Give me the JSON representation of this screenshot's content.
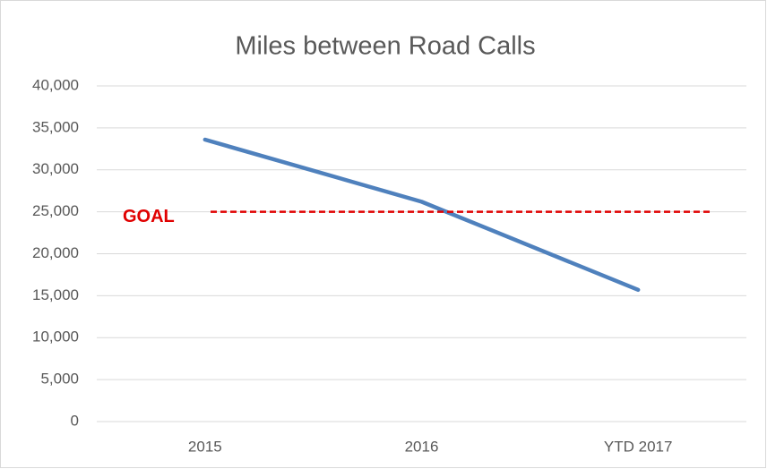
{
  "chart_data": {
    "type": "line",
    "title": "Miles between Road Calls",
    "categories": [
      "2015",
      "2016",
      "YTD 2017"
    ],
    "values": [
      33600,
      26200,
      15700
    ],
    "color": "#4f81bd",
    "ylim": [
      0,
      40000
    ],
    "yticks": [
      0,
      {
        "value": 5000,
        "label": "5,000"
      },
      {
        "value": 10000,
        "label": "10,000"
      },
      {
        "value": 15000,
        "label": "15,000"
      },
      {
        "value": 20000,
        "label": "20,000"
      },
      {
        "value": 25000,
        "label": "25,000"
      },
      {
        "value": 30000,
        "label": "30,000"
      },
      {
        "value": 35000,
        "label": "35,000"
      },
      {
        "value": 40000,
        "label": "40,000"
      }
    ],
    "grid": true,
    "goal": {
      "label": "GOAL",
      "value": 25000,
      "color": "#e00000"
    }
  }
}
